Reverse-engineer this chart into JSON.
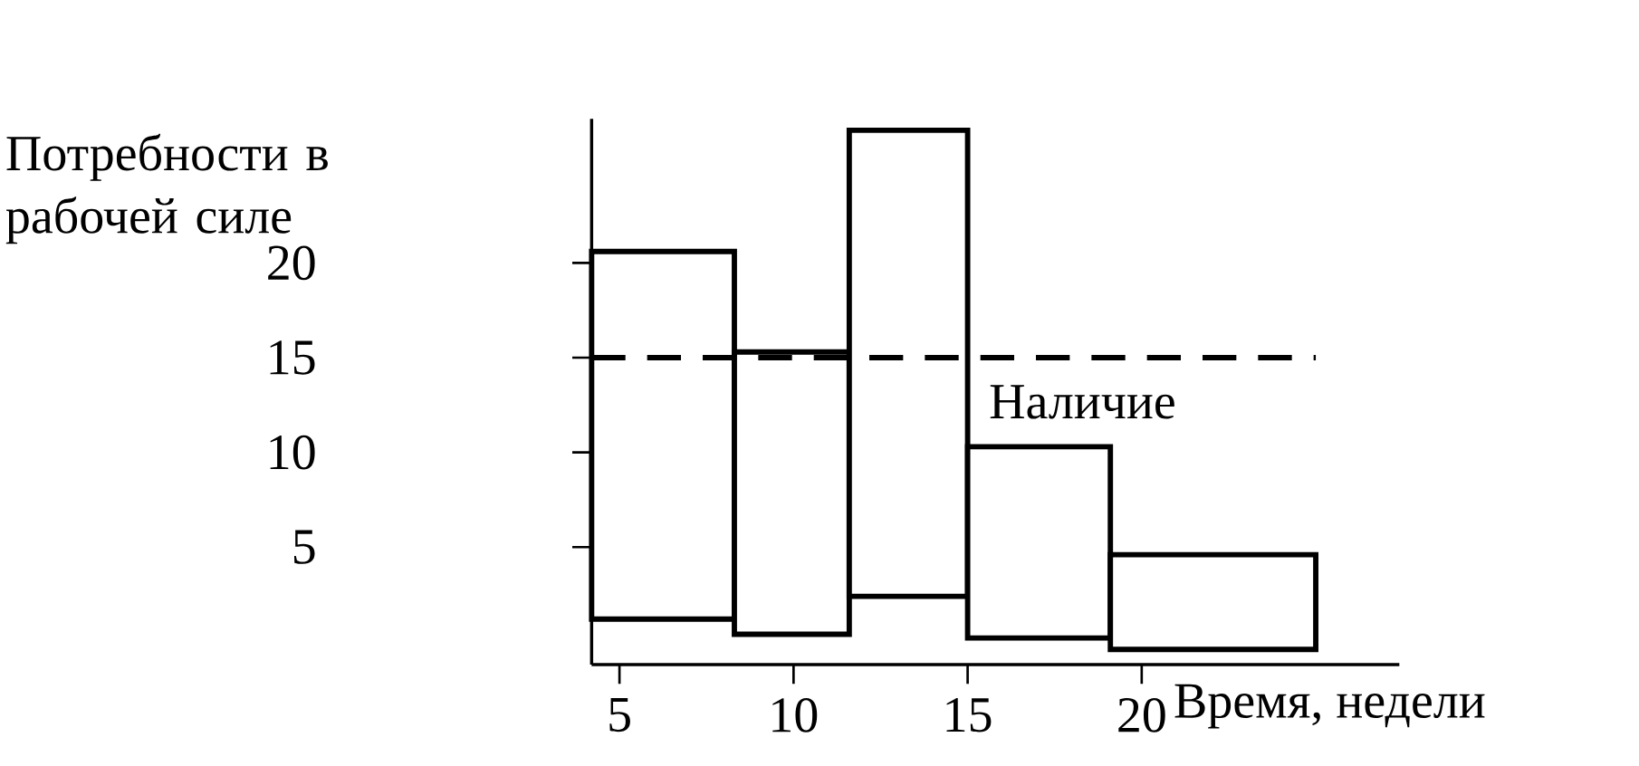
{
  "chart_data": {
    "type": "histogram",
    "ylabel": "Потребности в рабочей силе",
    "xlabel": "Время, недели",
    "bins": [
      4.2,
      8.3,
      11.6,
      15,
      19.1,
      25
    ],
    "values": [
      19.4,
      14.9,
      24.6,
      10.1,
      5.0
    ],
    "base": [
      1.2,
      0.4,
      2.4,
      0.2,
      -0.4
    ],
    "color": "#000000",
    "xlim": [
      4.2,
      27.4
    ],
    "ylim": [
      -1.2,
      27.6
    ],
    "xticks": [
      5,
      10,
      15,
      20
    ],
    "yticks": [
      5,
      10,
      15,
      20
    ],
    "ref_lines": [
      {
        "axis": "y",
        "value": 15,
        "label": "Наличие",
        "color": "#000000",
        "line_style": "dashed"
      }
    ],
    "grid": false
  }
}
